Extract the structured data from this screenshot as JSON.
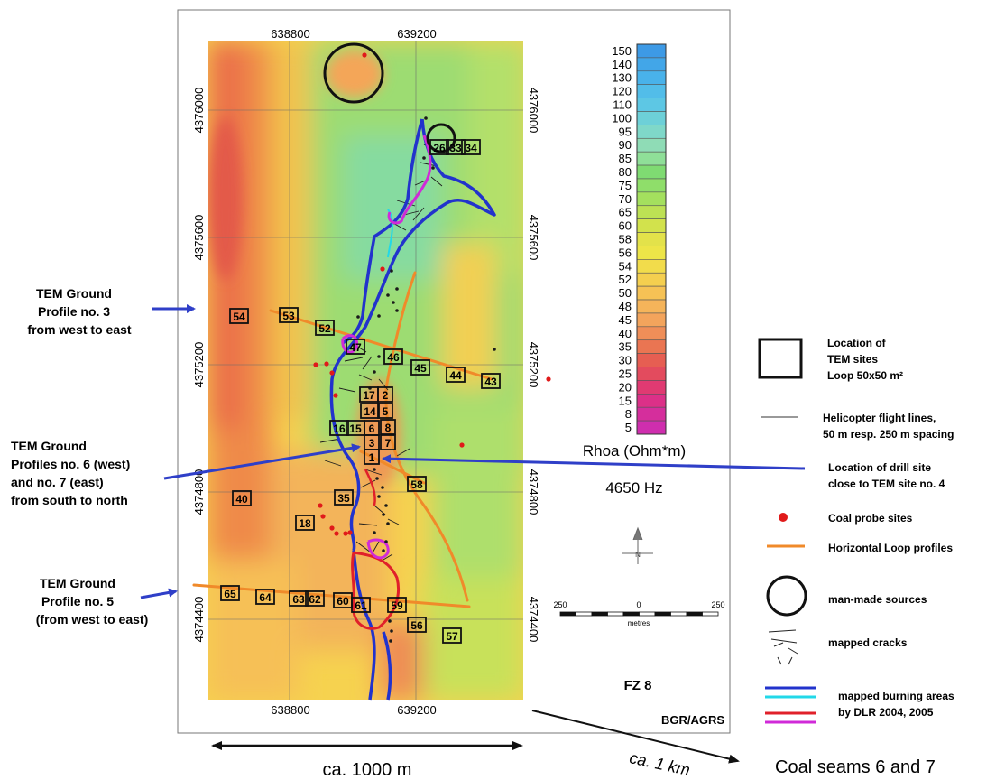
{
  "map": {
    "x_ticks": [
      "638800",
      "639200"
    ],
    "y_ticks": [
      "4376000",
      "4375600",
      "4375200",
      "4374800",
      "4374400"
    ],
    "tem_sites": [
      "54",
      "53",
      "52",
      "47",
      "46",
      "45",
      "44",
      "43",
      "17",
      "2",
      "14",
      "5",
      "16",
      "15",
      "6",
      "8",
      "3",
      "7",
      "1",
      "58",
      "40",
      "35",
      "18",
      "65",
      "64",
      "63",
      "62",
      "60",
      "61",
      "59",
      "56",
      "57",
      "26",
      "33",
      "34"
    ],
    "north_arrow_label": "N",
    "scale_bar": {
      "ticks": [
        "250",
        "0",
        "250"
      ],
      "unit": "metres"
    },
    "area_label": "FZ 8",
    "credit": "BGR/AGRS"
  },
  "colorbar": {
    "title": "Rhoa (Ohm*m)",
    "frequency": "4650 Hz",
    "levels": [
      "150",
      "140",
      "130",
      "120",
      "110",
      "100",
      "95",
      "90",
      "85",
      "80",
      "75",
      "70",
      "65",
      "60",
      "58",
      "56",
      "54",
      "52",
      "50",
      "48",
      "45",
      "40",
      "35",
      "30",
      "25",
      "20",
      "15",
      "8",
      "5"
    ],
    "colors": [
      "#3d9ae6",
      "#42a6e8",
      "#49b2ea",
      "#52bde9",
      "#5dc7e4",
      "#6dd0d8",
      "#7fd8c9",
      "#8fdcb6",
      "#8fdf98",
      "#7fdb72",
      "#8fde6a",
      "#a4e05e",
      "#bde154",
      "#d2e24c",
      "#e3e24a",
      "#ede548",
      "#f2dc4b",
      "#f5cf4f",
      "#f6c255",
      "#f5b45a",
      "#f3a45c",
      "#ef8e58",
      "#ea7552",
      "#e65e52",
      "#e34b5e",
      "#e03a72",
      "#dc3088",
      "#d52e9c",
      "#cf2eae"
    ]
  },
  "side_labels": {
    "profile3": [
      "TEM Ground",
      "Profile no. 3",
      "from west to east"
    ],
    "profile67": [
      "TEM Ground",
      "Profiles no. 6 (west)",
      "and no. 7 (east)",
      "from south to north"
    ],
    "profile5": [
      "TEM Ground",
      "Profile no. 5",
      "(from west to east)"
    ]
  },
  "legend": {
    "tem_sites": [
      "Location of",
      "TEM sites",
      "Loop 50x50 m²"
    ],
    "flight_lines": [
      "Helicopter flight lines,",
      "50 m resp. 250 m spacing"
    ],
    "drill_site": [
      "Location of drill site",
      "close to TEM site no. 4"
    ],
    "coal_probe": "Coal probe sites",
    "horizontal_loop": "Horizontal Loop profiles",
    "man_made": "man-made sources",
    "cracks": "mapped cracks",
    "burning_areas": [
      "mapped burning areas",
      "by DLR 2004, 2005"
    ],
    "burning_colors": [
      "#2233cc",
      "#22d8e8",
      "#e0202a",
      "#d02ad8"
    ],
    "coal_probe_color": "#e01a1a",
    "loop_profile_color": "#f08a2a"
  },
  "bottom": {
    "width_label": "ca. 1000 m",
    "km_label": "ca. 1 km",
    "coal_seams": "Coal seams 6 and 7"
  }
}
